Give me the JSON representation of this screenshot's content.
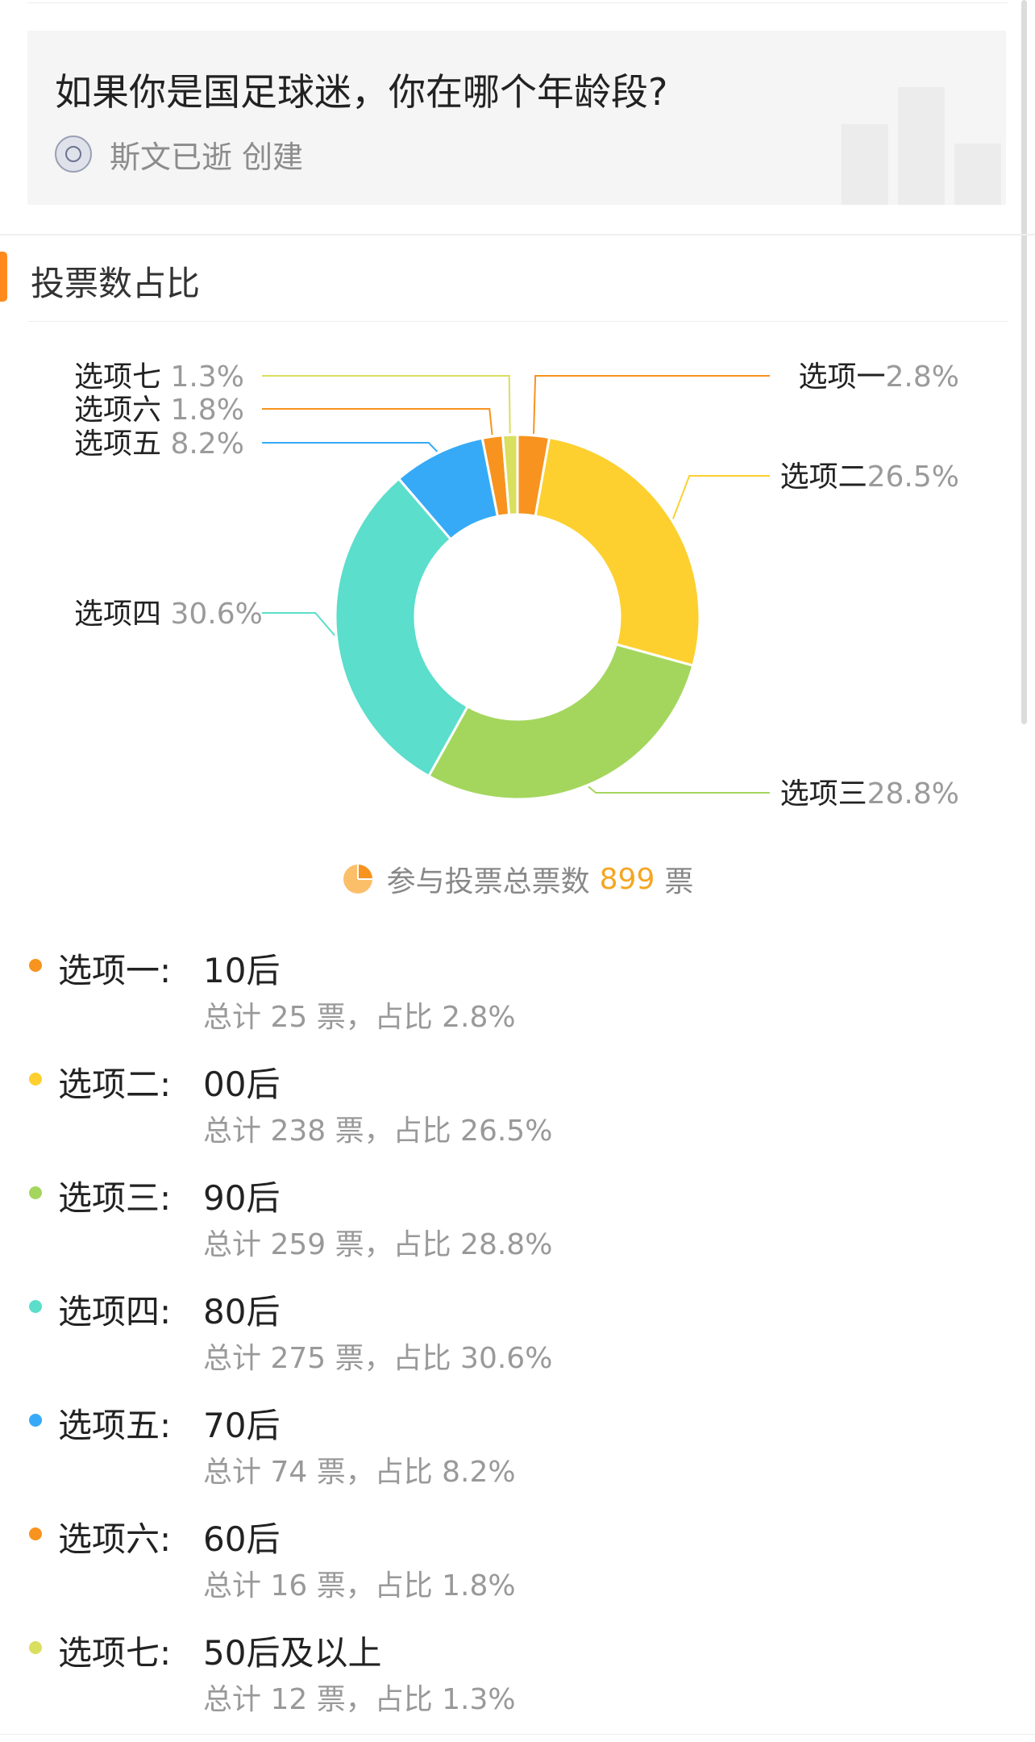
{
  "poll": {
    "title": "如果你是国足球迷，你在哪个年龄段?",
    "creator_text": "斯文已逝 创建"
  },
  "section": {
    "title": "投票数占比"
  },
  "total": {
    "label": "参与投票总票数",
    "value": "899",
    "unit": "票"
  },
  "options": [
    {
      "label": "选项一:",
      "value": "10后",
      "stats": "总计 25 票，占比 2.8%",
      "color": "#f7931e"
    },
    {
      "label": "选项二:",
      "value": "00后",
      "stats": "总计 238 票，占比 26.5%",
      "color": "#fdd02f"
    },
    {
      "label": "选项三:",
      "value": "90后",
      "stats": "总计 259 票，占比 28.8%",
      "color": "#a4d65e"
    },
    {
      "label": "选项四:",
      "value": "80后",
      "stats": "总计 275 票，占比 30.6%",
      "color": "#5bdecb"
    },
    {
      "label": "选项五:",
      "value": "70后",
      "stats": "总计 74 票，占比 8.2%",
      "color": "#36aaf7"
    },
    {
      "label": "选项六:",
      "value": "60后",
      "stats": "总计 16 票，占比 1.8%",
      "color": "#f7931e"
    },
    {
      "label": "选项七:",
      "value": "50后及以上",
      "stats": "总计 12 票，占比 1.3%",
      "color": "#d9df5e"
    }
  ],
  "chart_data": {
    "type": "pie",
    "title": "投票数占比",
    "variant": "donut",
    "legend_placement": "outside labels",
    "categories": [
      "选项一",
      "选项二",
      "选项三",
      "选项四",
      "选项五",
      "选项六",
      "选项七"
    ],
    "values": [
      2.8,
      26.5,
      28.8,
      30.6,
      8.2,
      1.8,
      1.3
    ],
    "labels": [
      {
        "name": "选项一",
        "pct": "2.8%"
      },
      {
        "name": "选项二",
        "pct": "26.5%"
      },
      {
        "name": "选项三",
        "pct": "28.8%"
      },
      {
        "name": "选项四",
        "pct": "30.6%"
      },
      {
        "name": "选项五",
        "pct": "8.2%"
      },
      {
        "name": "选项六",
        "pct": "1.8%"
      },
      {
        "name": "选项七",
        "pct": "1.3%"
      }
    ],
    "colors": [
      "#f7931e",
      "#fdd02f",
      "#a4d65e",
      "#5bdecb",
      "#36aaf7",
      "#f7931e",
      "#d9df5e"
    ],
    "total_votes": 899
  }
}
